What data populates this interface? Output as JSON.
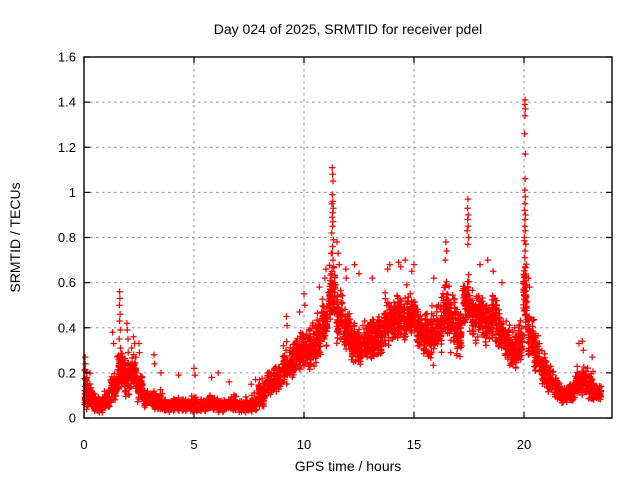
{
  "chart_data": {
    "type": "scatter",
    "title": "Day 024 of 2025, SRMTID for receiver pdel",
    "xlabel": "GPS time / hours",
    "ylabel": "SRMTID / TECUs",
    "xlim": [
      0,
      24
    ],
    "ylim": [
      0,
      1.6
    ],
    "xticks": [
      0,
      5,
      10,
      15,
      20
    ],
    "xtick_labels": [
      "0",
      "5",
      "10",
      "15",
      "20"
    ],
    "yticks": [
      0,
      0.2,
      0.4,
      0.6,
      0.8,
      1.0,
      1.2,
      1.4,
      1.6
    ],
    "ytick_labels": [
      "0",
      "0.2",
      "0.4",
      "0.6",
      "0.8",
      "1",
      "1.2",
      "1.4",
      "1.6"
    ],
    "grid": "dashed-gray-at-major-ticks",
    "legend": "none",
    "marker": "plus",
    "marker_color": "#ff0000",
    "series_name": "SRMTID",
    "density_bins_format": "[t_start_hours, t_end_hours, y_center_TECU, y_spread_TECU, n_points]",
    "density_bins": [
      [
        0.0,
        0.18,
        0.13,
        0.12,
        30
      ],
      [
        0.1,
        0.35,
        0.1,
        0.08,
        45
      ],
      [
        0.3,
        0.6,
        0.07,
        0.05,
        55
      ],
      [
        0.6,
        0.9,
        0.06,
        0.045,
        60
      ],
      [
        0.9,
        1.2,
        0.075,
        0.05,
        60
      ],
      [
        1.2,
        1.5,
        0.13,
        0.09,
        60
      ],
      [
        1.5,
        1.8,
        0.2,
        0.11,
        70
      ],
      [
        1.8,
        2.1,
        0.18,
        0.1,
        70
      ],
      [
        2.1,
        2.4,
        0.2,
        0.1,
        60
      ],
      [
        2.4,
        2.7,
        0.13,
        0.09,
        55
      ],
      [
        2.7,
        3.0,
        0.085,
        0.05,
        55
      ],
      [
        3.0,
        3.3,
        0.08,
        0.05,
        55
      ],
      [
        3.3,
        3.6,
        0.07,
        0.045,
        55
      ],
      [
        3.6,
        4.0,
        0.055,
        0.035,
        70
      ],
      [
        4.0,
        4.4,
        0.06,
        0.04,
        70
      ],
      [
        4.4,
        4.8,
        0.055,
        0.035,
        70
      ],
      [
        4.8,
        5.2,
        0.06,
        0.04,
        70
      ],
      [
        5.2,
        5.6,
        0.055,
        0.035,
        70
      ],
      [
        5.6,
        6.0,
        0.065,
        0.04,
        70
      ],
      [
        6.0,
        6.5,
        0.05,
        0.035,
        80
      ],
      [
        6.5,
        7.0,
        0.06,
        0.04,
        80
      ],
      [
        7.0,
        7.5,
        0.05,
        0.035,
        80
      ],
      [
        7.5,
        7.9,
        0.06,
        0.04,
        70
      ],
      [
        7.9,
        8.3,
        0.1,
        0.07,
        70
      ],
      [
        8.3,
        8.6,
        0.15,
        0.07,
        60
      ],
      [
        8.6,
        9.0,
        0.17,
        0.08,
        70
      ],
      [
        9.0,
        9.3,
        0.22,
        0.1,
        60
      ],
      [
        9.3,
        9.6,
        0.25,
        0.1,
        60
      ],
      [
        9.6,
        9.9,
        0.28,
        0.11,
        60
      ],
      [
        9.9,
        10.2,
        0.3,
        0.11,
        60
      ],
      [
        10.2,
        10.5,
        0.32,
        0.12,
        60
      ],
      [
        10.5,
        10.8,
        0.34,
        0.12,
        60
      ],
      [
        10.8,
        11.1,
        0.42,
        0.13,
        60
      ],
      [
        11.1,
        11.45,
        0.55,
        0.17,
        70
      ],
      [
        11.45,
        11.8,
        0.45,
        0.14,
        60
      ],
      [
        11.8,
        12.1,
        0.38,
        0.13,
        60
      ],
      [
        12.1,
        12.4,
        0.34,
        0.12,
        60
      ],
      [
        12.4,
        12.7,
        0.31,
        0.11,
        60
      ],
      [
        12.7,
        13.0,
        0.33,
        0.11,
        60
      ],
      [
        13.0,
        13.3,
        0.35,
        0.12,
        60
      ],
      [
        13.3,
        13.6,
        0.36,
        0.12,
        60
      ],
      [
        13.6,
        13.9,
        0.41,
        0.13,
        60
      ],
      [
        13.9,
        14.2,
        0.42,
        0.12,
        60
      ],
      [
        14.2,
        14.5,
        0.45,
        0.13,
        60
      ],
      [
        14.5,
        14.8,
        0.43,
        0.12,
        60
      ],
      [
        14.8,
        15.1,
        0.45,
        0.12,
        60
      ],
      [
        15.1,
        15.4,
        0.38,
        0.12,
        60
      ],
      [
        15.4,
        15.7,
        0.35,
        0.12,
        60
      ],
      [
        15.7,
        16.0,
        0.35,
        0.13,
        60
      ],
      [
        16.0,
        16.3,
        0.4,
        0.13,
        60
      ],
      [
        16.3,
        16.6,
        0.47,
        0.15,
        60
      ],
      [
        16.6,
        16.9,
        0.42,
        0.14,
        60
      ],
      [
        16.9,
        17.2,
        0.38,
        0.13,
        60
      ],
      [
        17.2,
        17.6,
        0.52,
        0.16,
        70
      ],
      [
        17.6,
        17.9,
        0.45,
        0.14,
        60
      ],
      [
        17.9,
        18.2,
        0.47,
        0.13,
        60
      ],
      [
        18.2,
        18.5,
        0.42,
        0.12,
        60
      ],
      [
        18.5,
        18.8,
        0.44,
        0.13,
        60
      ],
      [
        18.8,
        19.1,
        0.38,
        0.12,
        60
      ],
      [
        19.1,
        19.4,
        0.33,
        0.11,
        60
      ],
      [
        19.4,
        19.7,
        0.3,
        0.11,
        60
      ],
      [
        19.7,
        19.95,
        0.32,
        0.12,
        50
      ],
      [
        19.95,
        20.15,
        0.55,
        0.22,
        50
      ],
      [
        20.15,
        20.45,
        0.35,
        0.13,
        55
      ],
      [
        20.45,
        20.75,
        0.28,
        0.1,
        55
      ],
      [
        20.75,
        21.05,
        0.22,
        0.09,
        55
      ],
      [
        21.05,
        21.35,
        0.17,
        0.07,
        55
      ],
      [
        21.35,
        21.65,
        0.13,
        0.06,
        55
      ],
      [
        21.65,
        22.0,
        0.1,
        0.05,
        60
      ],
      [
        22.0,
        22.3,
        0.11,
        0.05,
        55
      ],
      [
        22.3,
        22.6,
        0.15,
        0.07,
        55
      ],
      [
        22.6,
        22.9,
        0.17,
        0.08,
        55
      ],
      [
        22.9,
        23.2,
        0.13,
        0.07,
        55
      ],
      [
        23.2,
        23.55,
        0.11,
        0.05,
        60
      ]
    ],
    "peak_points": [
      [
        0.05,
        0.27
      ],
      [
        0.07,
        0.24
      ],
      [
        0.06,
        0.215
      ],
      [
        1.3,
        0.38
      ],
      [
        1.35,
        0.33
      ],
      [
        1.62,
        0.56
      ],
      [
        1.63,
        0.53
      ],
      [
        1.61,
        0.5
      ],
      [
        1.64,
        0.46
      ],
      [
        1.62,
        0.43
      ],
      [
        1.65,
        0.39
      ],
      [
        1.6,
        0.35
      ],
      [
        1.66,
        0.31
      ],
      [
        1.95,
        0.42
      ],
      [
        1.97,
        0.39
      ],
      [
        2.0,
        0.35
      ],
      [
        2.25,
        0.36
      ],
      [
        2.3,
        0.33
      ],
      [
        2.5,
        0.33
      ],
      [
        2.52,
        0.29
      ],
      [
        3.18,
        0.28
      ],
      [
        3.21,
        0.24
      ],
      [
        3.5,
        0.2
      ],
      [
        4.3,
        0.19
      ],
      [
        5.0,
        0.22
      ],
      [
        5.05,
        0.19
      ],
      [
        5.8,
        0.18
      ],
      [
        6.1,
        0.2
      ],
      [
        6.6,
        0.16
      ],
      [
        7.6,
        0.15
      ],
      [
        7.8,
        0.17
      ],
      [
        9.2,
        0.45
      ],
      [
        9.23,
        0.41
      ],
      [
        9.8,
        0.47
      ],
      [
        10.0,
        0.55
      ],
      [
        10.04,
        0.5
      ],
      [
        10.7,
        0.58
      ],
      [
        10.95,
        0.62
      ],
      [
        11.0,
        0.66
      ],
      [
        11.28,
        1.11
      ],
      [
        11.3,
        1.08
      ],
      [
        11.32,
        1.05
      ],
      [
        11.29,
        0.99
      ],
      [
        11.31,
        0.96
      ],
      [
        11.27,
        0.95
      ],
      [
        11.33,
        0.93
      ],
      [
        11.3,
        0.91
      ],
      [
        11.28,
        0.89
      ],
      [
        11.32,
        0.87
      ],
      [
        11.3,
        0.85
      ],
      [
        11.26,
        0.82
      ],
      [
        11.34,
        0.79
      ],
      [
        11.3,
        0.76
      ],
      [
        11.28,
        0.73
      ],
      [
        11.32,
        0.7
      ],
      [
        11.35,
        0.67
      ],
      [
        11.25,
        0.64
      ],
      [
        11.5,
        0.78
      ],
      [
        11.55,
        0.73
      ],
      [
        11.6,
        0.68
      ],
      [
        11.9,
        0.66
      ],
      [
        11.92,
        0.62
      ],
      [
        12.3,
        0.68
      ],
      [
        12.5,
        0.64
      ],
      [
        13.1,
        0.62
      ],
      [
        13.8,
        0.66
      ],
      [
        13.9,
        0.68
      ],
      [
        14.3,
        0.69
      ],
      [
        14.4,
        0.67
      ],
      [
        14.6,
        0.7
      ],
      [
        14.9,
        0.65
      ],
      [
        15.0,
        0.68
      ],
      [
        15.9,
        0.62
      ],
      [
        16.42,
        0.7
      ],
      [
        16.45,
        0.78
      ],
      [
        16.48,
        0.74
      ],
      [
        17.45,
        0.97
      ],
      [
        17.43,
        0.93
      ],
      [
        17.47,
        0.9
      ],
      [
        17.44,
        0.88
      ],
      [
        17.46,
        0.85
      ],
      [
        17.42,
        0.83
      ],
      [
        17.48,
        0.8
      ],
      [
        17.45,
        0.77
      ],
      [
        18.0,
        0.68
      ],
      [
        18.35,
        0.7
      ],
      [
        18.6,
        0.65
      ],
      [
        19.0,
        0.6
      ],
      [
        20.05,
        1.41
      ],
      [
        20.04,
        1.39
      ],
      [
        20.06,
        1.37
      ],
      [
        20.05,
        1.34
      ],
      [
        20.03,
        1.26
      ],
      [
        20.06,
        1.17
      ],
      [
        20.05,
        1.06
      ],
      [
        20.04,
        1.01
      ],
      [
        20.06,
        0.98
      ],
      [
        20.05,
        0.95
      ],
      [
        20.03,
        0.92
      ],
      [
        20.07,
        0.9
      ],
      [
        20.05,
        0.88
      ],
      [
        20.04,
        0.85
      ],
      [
        20.06,
        0.83
      ],
      [
        20.02,
        0.8
      ],
      [
        20.08,
        0.77
      ],
      [
        20.05,
        0.74
      ],
      [
        20.04,
        0.71
      ],
      [
        20.06,
        0.67
      ],
      [
        20.03,
        0.63
      ],
      [
        20.07,
        0.59
      ],
      [
        20.2,
        0.62
      ],
      [
        20.25,
        0.58
      ],
      [
        22.5,
        0.33
      ],
      [
        22.65,
        0.34
      ],
      [
        22.7,
        0.3
      ],
      [
        23.1,
        0.27
      ]
    ]
  },
  "colors": {
    "marker": "#ff0000",
    "grid": "#8f8f8f",
    "border": "#000000",
    "background": "#ffffff",
    "text": "#000000"
  }
}
